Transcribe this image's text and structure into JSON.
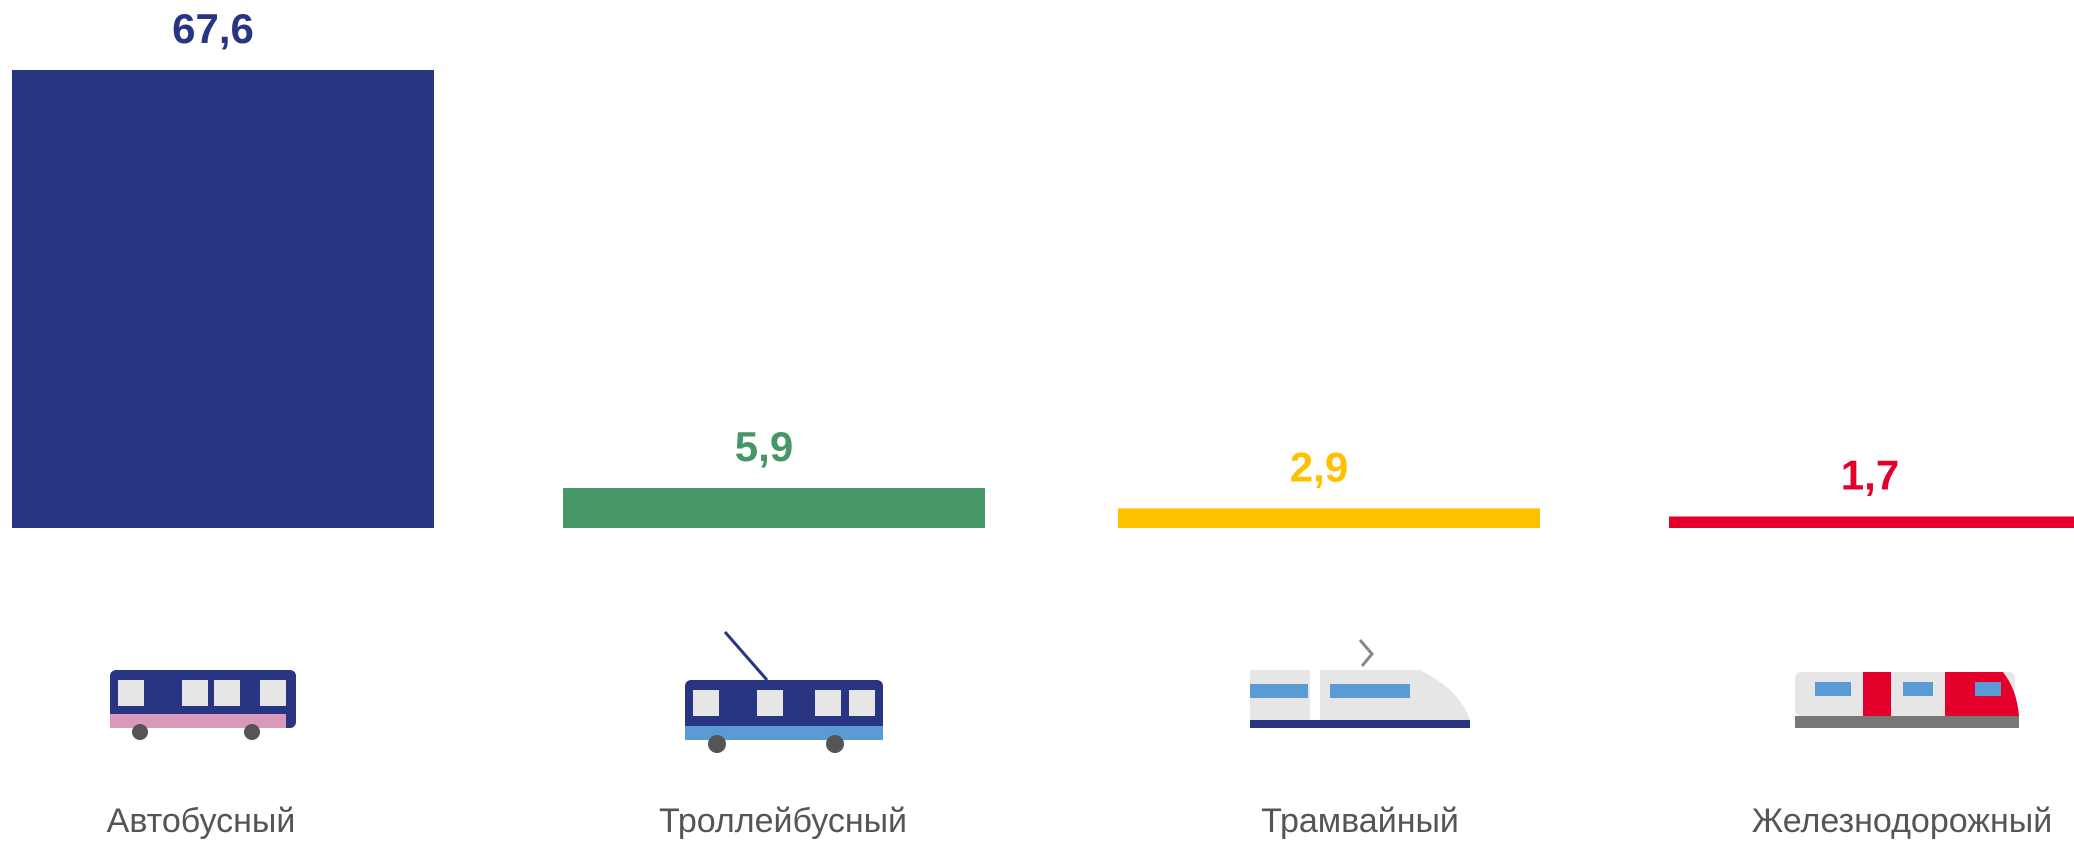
{
  "chart_data": {
    "type": "bar",
    "categories": [
      "Автобусный",
      "Троллейбусный",
      "Трамвайный",
      "Железнодорожный"
    ],
    "values": [
      67.6,
      5.9,
      2.9,
      1.7
    ],
    "value_labels": [
      "67,6",
      "5,9",
      "2,9",
      "1,7"
    ],
    "colors": [
      "#283583",
      "#459866",
      "#FFC000",
      "#E4002B"
    ],
    "ylim": [
      0,
      67.6
    ]
  }
}
